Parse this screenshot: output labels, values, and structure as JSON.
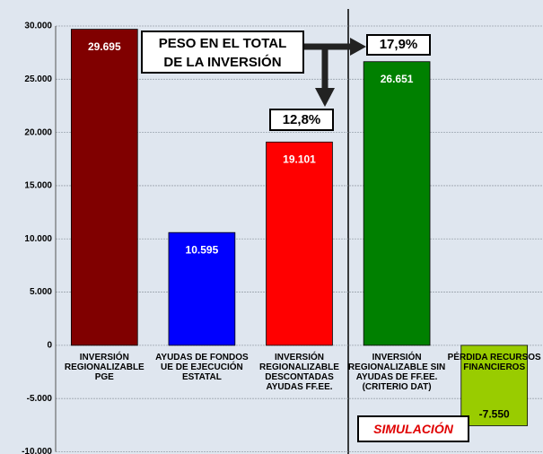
{
  "chart_data": {
    "type": "bar",
    "categories": [
      "INVERSIÓN\nREGIONALIZABLE\nPGE",
      "AYUDAS DE FONDOS\nUE DE EJECUCIÓN\nESTATAL",
      "INVERSIÓN\nREGIONALIZABLE\nDESCONTADAS\nAYUDAS FF.EE.",
      "INVERSIÓN\nREGIONALIZABLE SIN\nAYUDAS DE FF.EE.\n(CRITERIO DAT)",
      "PÉRDIDA RECURSOS\nFINANCIEROS"
    ],
    "values": [
      29695,
      10595,
      19101,
      26651,
      -7550
    ],
    "value_labels": [
      "29.695",
      "10.595",
      "19.101",
      "26.651",
      "-7.550"
    ],
    "colors": [
      "#800000",
      "#0000ff",
      "#ff0000",
      "#008000",
      "#99cc00"
    ],
    "ylim": [
      -10000,
      30000
    ],
    "yticks": [
      {
        "value": -10000,
        "label": "-10.000"
      },
      {
        "value": -5000,
        "label": "-5.000"
      },
      0,
      {
        "value": 5000,
        "label": "5.000"
      },
      {
        "value": 10000,
        "label": "10.000"
      },
      {
        "value": 15000,
        "label": "15.000"
      },
      {
        "value": 20000,
        "label": "20.000"
      },
      {
        "value": 25000,
        "label": "25.000"
      },
      {
        "value": 30000,
        "label": "30.000"
      }
    ],
    "grid": true,
    "annotations": [
      "PESO EN EL TOTAL\nDE LA INVERSIÓN",
      "17,9%",
      "12,8%",
      "SIMULACIÓN"
    ]
  }
}
